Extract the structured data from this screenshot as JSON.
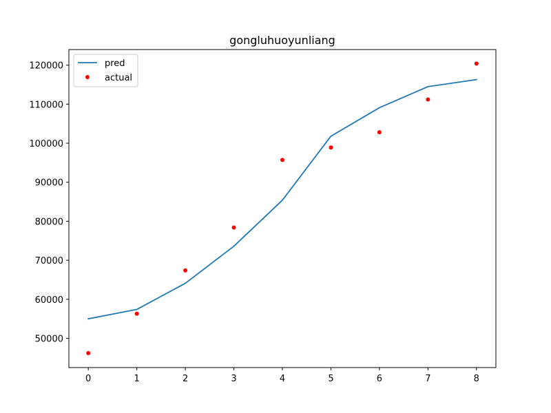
{
  "chart_data": {
    "type": "line",
    "title": "gongluhuoyunliang",
    "xlabel": "",
    "ylabel": "",
    "xlim": [
      -0.4,
      8.4
    ],
    "ylim": [
      42500,
      124000
    ],
    "x_ticks": [
      0,
      1,
      2,
      3,
      4,
      5,
      6,
      7,
      8
    ],
    "y_ticks": [
      50000,
      60000,
      70000,
      80000,
      90000,
      100000,
      110000,
      120000
    ],
    "x_tick_labels": [
      "0",
      "1",
      "2",
      "3",
      "4",
      "5",
      "6",
      "7",
      "8"
    ],
    "y_tick_labels": [
      "50000",
      "60000",
      "70000",
      "80000",
      "90000",
      "100000",
      "110000",
      "120000"
    ],
    "grid": false,
    "legend_position": "top-left",
    "x": [
      0,
      1,
      2,
      3,
      4,
      5,
      6,
      7,
      8
    ],
    "series": [
      {
        "name": "pred",
        "kind": "line",
        "color": "#1f77b4",
        "values": [
          55000,
          57400,
          64100,
          73600,
          85400,
          101800,
          109100,
          114500,
          116300
        ]
      },
      {
        "name": "actual",
        "kind": "scatter",
        "color": "#ff0000",
        "values": [
          46200,
          56300,
          67400,
          78400,
          95700,
          98900,
          102800,
          111200,
          120400
        ]
      }
    ]
  }
}
